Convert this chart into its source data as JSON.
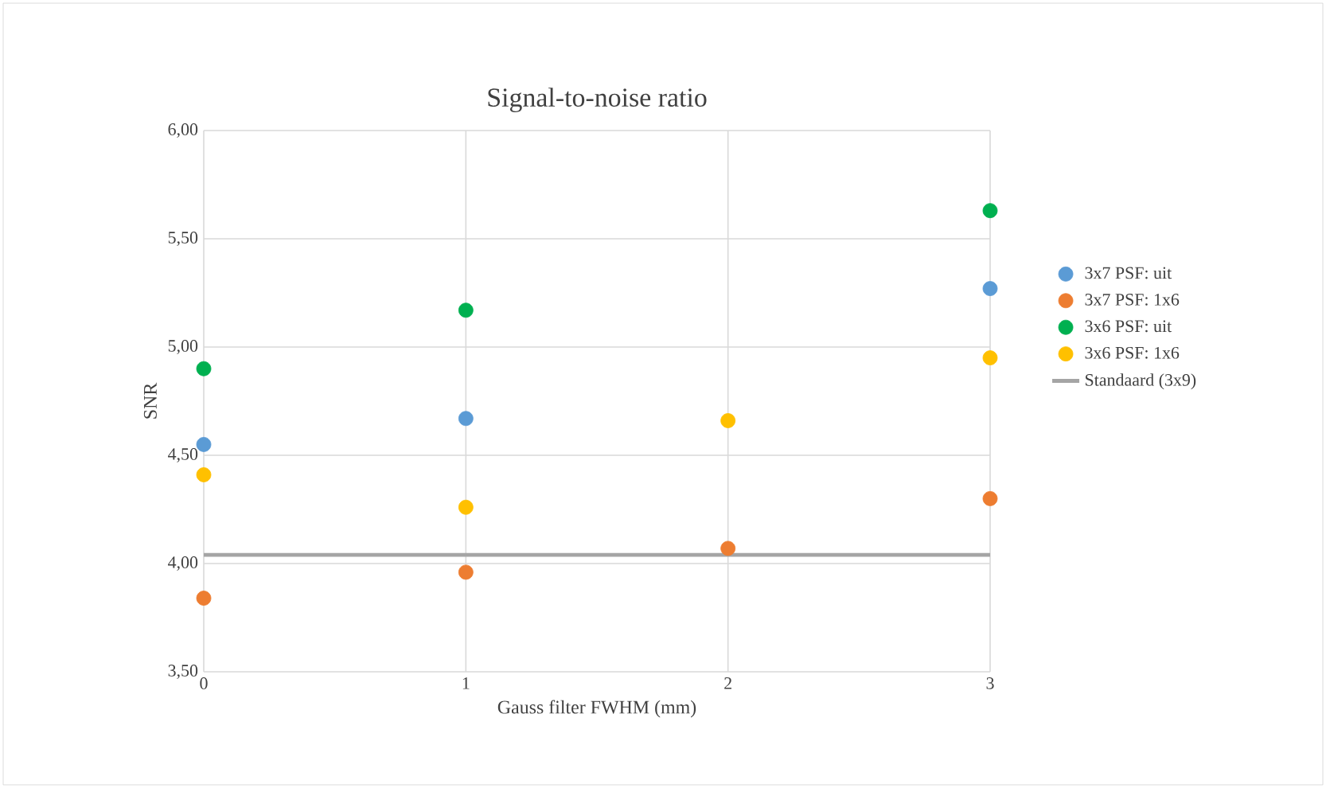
{
  "chart_data": {
    "type": "scatter",
    "title": "Signal-to-noise ratio",
    "xlabel": "Gauss filter FWHM (mm)",
    "ylabel": "SNR",
    "x": [
      0,
      1,
      2,
      3
    ],
    "series": [
      {
        "name": "3x7 PSF: uit",
        "color": "#5b9bd5",
        "values": [
          4.55,
          4.67,
          null,
          5.27
        ]
      },
      {
        "name": "3x7 PSF: 1x6",
        "color": "#ed7d31",
        "values": [
          3.84,
          3.96,
          4.07,
          4.3
        ]
      },
      {
        "name": "3x6 PSF: uit",
        "color": "#00b050",
        "values": [
          4.9,
          5.17,
          null,
          5.63
        ]
      },
      {
        "name": "3x6 PSF: 1x6",
        "color": "#ffc000",
        "values": [
          4.41,
          4.26,
          4.66,
          4.95
        ]
      },
      {
        "name": "Standaard (3x9)",
        "color": "#a5a5a5",
        "type": "line",
        "marker": "none",
        "x": [
          0,
          3
        ],
        "values": [
          4.04,
          4.04
        ]
      }
    ],
    "xlim": [
      0,
      3
    ],
    "xticks": [
      0,
      1,
      2,
      3
    ],
    "ylim": [
      3.5,
      6.0
    ],
    "yticks": [
      {
        "value": 3.5,
        "label": "3,50"
      },
      {
        "value": 4.0,
        "label": "4,00"
      },
      {
        "value": 4.5,
        "label": "4,50"
      },
      {
        "value": 5.0,
        "label": "5,00"
      },
      {
        "value": 5.5,
        "label": "5,50"
      },
      {
        "value": 6.0,
        "label": "6,00"
      }
    ],
    "grid": true,
    "legend": "right",
    "marker": "circle"
  }
}
